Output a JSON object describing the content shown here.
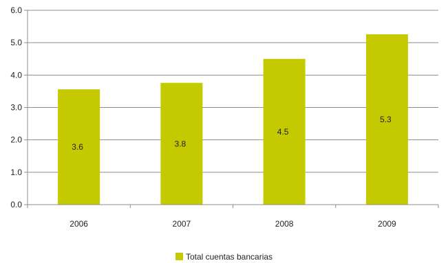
{
  "chart_data": {
    "type": "bar",
    "categories": [
      "2006",
      "2007",
      "2008",
      "2009"
    ],
    "series": [
      {
        "name": "Total cuentas bancarias",
        "values": [
          3.56,
          3.76,
          4.5,
          5.26
        ]
      }
    ],
    "data_labels": [
      "3.6",
      "3.8",
      "4.5",
      "5.3"
    ],
    "y_ticks": [
      "0.0",
      "1.0",
      "2.0",
      "3.0",
      "4.0",
      "5.0",
      "6.0"
    ],
    "ylim": [
      0,
      6
    ],
    "grid": true,
    "legend_position": "bottom",
    "bar_color": "#c5c900",
    "gridline_color": "#8c8c8c"
  }
}
